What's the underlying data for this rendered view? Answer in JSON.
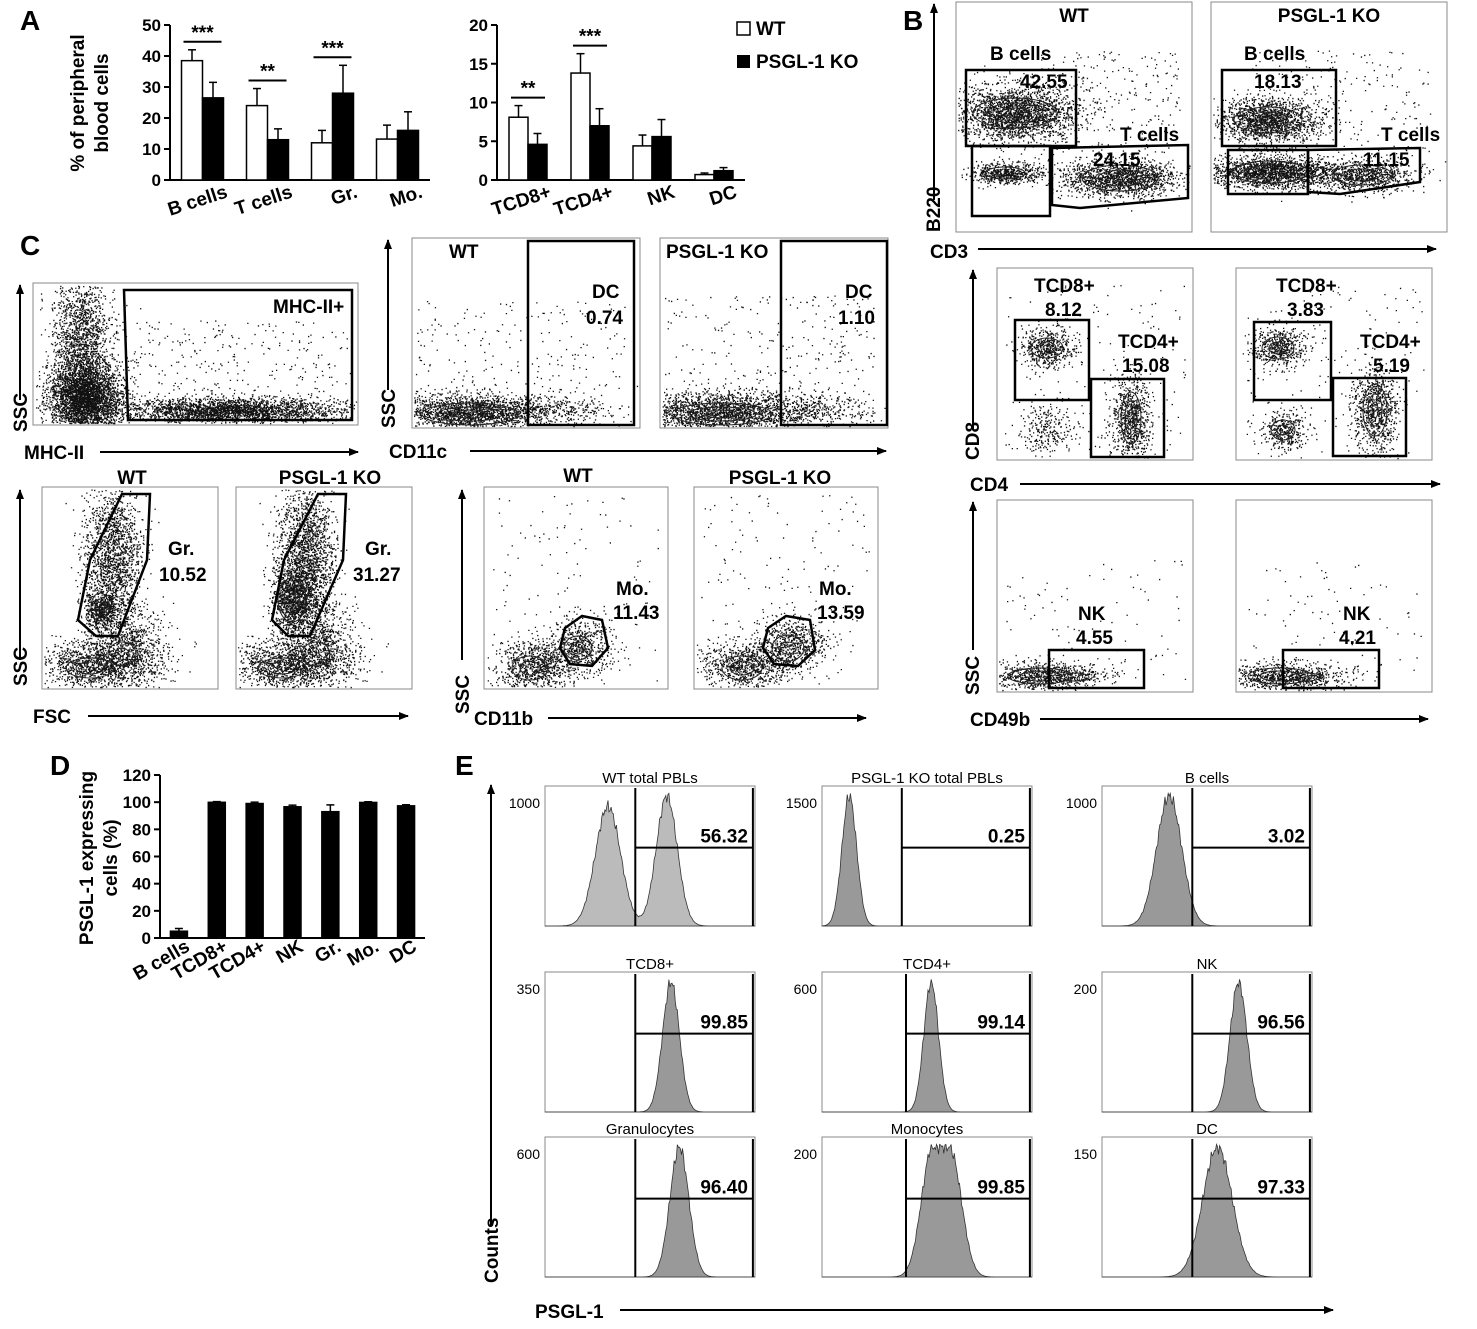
{
  "panels": {
    "A": "A",
    "B": "B",
    "C": "C",
    "D": "D",
    "E": "E"
  },
  "panel_a": {
    "legend": {
      "wt": "WT",
      "ko": "PSGL-1 KO"
    },
    "ylabel_line1": "% of peripheral",
    "ylabel_line2": "blood cells"
  },
  "chart_data": [
    {
      "type": "bar",
      "id": "A-left",
      "categories": [
        "B cells",
        "T cells",
        "Gr.",
        "Mo."
      ],
      "series": [
        {
          "name": "WT",
          "values": [
            38.5,
            24,
            12,
            13.2
          ],
          "errors": [
            3.5,
            5.5,
            4,
            4.5
          ]
        },
        {
          "name": "PSGL-1 KO",
          "values": [
            26.5,
            13,
            28,
            16
          ],
          "errors": [
            5,
            3.5,
            9,
            6
          ]
        }
      ],
      "significance": [
        "***",
        "**",
        "***",
        ""
      ],
      "ylabel": "% of peripheral blood cells",
      "ylim": [
        0,
        50
      ],
      "yticks": [
        0,
        10,
        20,
        30,
        40,
        50
      ]
    },
    {
      "type": "bar",
      "id": "A-right",
      "categories": [
        "TCD8+",
        "TCD4+",
        "NK",
        "DC"
      ],
      "series": [
        {
          "name": "WT",
          "values": [
            8.1,
            13.8,
            4.4,
            0.7
          ],
          "errors": [
            1.5,
            2.5,
            1.4,
            0.2
          ]
        },
        {
          "name": "PSGL-1 KO",
          "values": [
            4.6,
            7,
            5.6,
            1.2
          ],
          "errors": [
            1.4,
            2.2,
            2.2,
            0.4
          ]
        }
      ],
      "significance": [
        "**",
        "***",
        "",
        ""
      ],
      "ylim": [
        0,
        20
      ],
      "yticks": [
        0,
        5,
        10,
        15,
        20
      ]
    },
    {
      "type": "bar",
      "id": "D",
      "categories": [
        "B cells",
        "TCD8+",
        "TCD4+",
        "NK",
        "Gr.",
        "Mo.",
        "DC"
      ],
      "values": [
        5,
        99.9,
        99,
        96.6,
        93,
        99.8,
        97.3
      ],
      "errors": [
        2,
        0.5,
        1,
        1.2,
        5,
        0.5,
        0.8
      ],
      "ylabel": "PSGL-1 expressing cells (%)",
      "ylim": [
        0,
        120
      ],
      "yticks": [
        0,
        20,
        40,
        60,
        80,
        100,
        120
      ]
    }
  ],
  "panel_b": {
    "row1": {
      "titles": [
        "WT",
        "PSGL-1 KO"
      ],
      "bcell_label": "B cells",
      "tcell_label": "T cells",
      "bcell_values": [
        "42.55",
        "18.13"
      ],
      "tcell_values": [
        "24.15",
        "11.15"
      ],
      "xaxis": "CD3",
      "yaxis": "B220"
    },
    "row2": {
      "tcd8_label": "TCD8+",
      "tcd4_label": "TCD4+",
      "tcd8_values": [
        "8.12",
        "3.83"
      ],
      "tcd4_values": [
        "15.08",
        "5.19"
      ],
      "xaxis": "CD4",
      "yaxis": "CD8"
    },
    "row3": {
      "nk_label": "NK",
      "nk_values": [
        "4.55",
        "4.21"
      ],
      "xaxis": "CD49b",
      "yaxis": "SSC"
    }
  },
  "panel_c": {
    "mhc": {
      "gate": "MHC-II+",
      "xaxis": "MHC-II",
      "yaxis": "SSC"
    },
    "dc": {
      "titles": [
        "WT",
        "PSGL-1 KO"
      ],
      "gate": "DC",
      "values": [
        "0.74",
        "1.10"
      ],
      "xaxis": "CD11c",
      "yaxis": "SSC"
    },
    "gr": {
      "titles": [
        "WT",
        "PSGL-1 KO"
      ],
      "gate": "Gr.",
      "values": [
        "10.52",
        "31.27"
      ],
      "xaxis": "FSC",
      "yaxis": "SSC"
    },
    "mo": {
      "titles": [
        "WT",
        "PSGL-1 KO"
      ],
      "gate": "Mo.",
      "values": [
        "11.43",
        "13.59"
      ],
      "xaxis": "CD11b",
      "yaxis": "SSC"
    }
  },
  "panel_e": {
    "xaxis": "PSGL-1",
    "yaxis": "Counts",
    "histograms": [
      {
        "title": "WT total PBLs",
        "value": "56.32",
        "ymax": "1000"
      },
      {
        "title": "PSGL-1 KO total PBLs",
        "value": "0.25",
        "ymax": "1500"
      },
      {
        "title": "B cells",
        "value": "3.02",
        "ymax": "1000"
      },
      {
        "title": "TCD8+",
        "value": "99.85",
        "ymax": "350"
      },
      {
        "title": "TCD4+",
        "value": "99.14",
        "ymax": "600"
      },
      {
        "title": "NK",
        "value": "96.56",
        "ymax": "200"
      },
      {
        "title": "Granulocytes",
        "value": "96.40",
        "ymax": "600"
      },
      {
        "title": "Monocytes",
        "value": "99.85",
        "ymax": "200"
      },
      {
        "title": "DC",
        "value": "97.33",
        "ymax": "150"
      }
    ]
  }
}
